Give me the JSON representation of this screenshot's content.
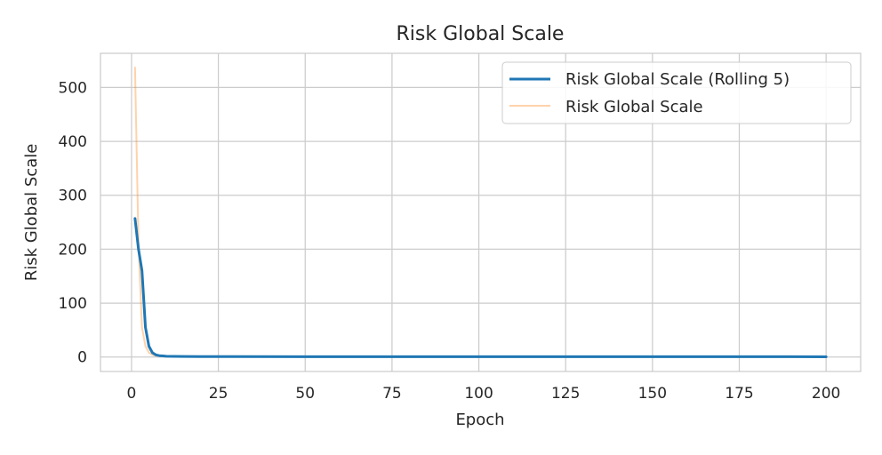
{
  "chart_data": {
    "type": "line",
    "title": "Risk Global Scale",
    "xlabel": "Epoch",
    "ylabel": "Risk Global Scale",
    "xlim": [
      -8.95,
      209.95
    ],
    "ylim": [
      -26.8,
      563.3
    ],
    "xticks": [
      0,
      25,
      50,
      75,
      100,
      125,
      150,
      175,
      200
    ],
    "yticks": [
      0,
      100,
      200,
      300,
      400,
      500
    ],
    "grid": true,
    "legend_position": "top-right",
    "series": [
      {
        "name": "Risk Global Scale (Rolling 5)",
        "color": "#1f77b4",
        "opacity": 1.0,
        "x": [
          1,
          2,
          3,
          4,
          5,
          6,
          7,
          8,
          9,
          10,
          12,
          15,
          20,
          30,
          50,
          100,
          150,
          200
        ],
        "y": [
          257,
          200,
          160,
          55,
          20,
          8,
          4,
          2.5,
          2,
          1.5,
          1.2,
          1.0,
          0.9,
          0.8,
          0.7,
          0.6,
          0.6,
          0.5
        ]
      },
      {
        "name": "Risk Global Scale",
        "color": "#ff7f0e",
        "opacity": 0.35,
        "x": [
          1,
          2,
          3,
          4,
          5,
          6,
          7,
          8,
          9,
          10,
          12,
          15,
          20,
          30,
          50,
          100,
          150,
          200
        ],
        "y": [
          537,
          210,
          55,
          20,
          8,
          4,
          2.5,
          2,
          1.5,
          1.2,
          1.0,
          0.9,
          0.8,
          0.7,
          0.6,
          0.5,
          0.5,
          0.5
        ]
      }
    ]
  }
}
